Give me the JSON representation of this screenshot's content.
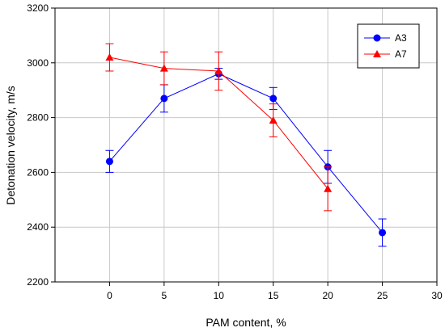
{
  "chart_data": {
    "type": "line",
    "title": "",
    "xlabel": "PAM content, %",
    "ylabel": "Detonation velocity, m/s",
    "xlim": [
      -5,
      30
    ],
    "ylim": [
      2200,
      3200
    ],
    "xticks": [
      0,
      5,
      10,
      15,
      20,
      25,
      30
    ],
    "yticks": [
      2200,
      2400,
      2600,
      2800,
      3000,
      3200
    ],
    "grid": true,
    "legend_position": "top-right",
    "series": [
      {
        "name": "A3",
        "color": "#0000FF",
        "marker": "circle",
        "x": [
          0,
          5,
          10,
          15,
          20,
          25
        ],
        "y": [
          2640,
          2870,
          2960,
          2870,
          2620,
          2380
        ],
        "error": [
          40,
          50,
          20,
          40,
          60,
          50
        ]
      },
      {
        "name": "A7",
        "color": "#FF0000",
        "marker": "triangle",
        "x": [
          0,
          5,
          10,
          15,
          20
        ],
        "y": [
          3020,
          2980,
          2970,
          2790,
          2540
        ],
        "error": [
          50,
          60,
          70,
          60,
          80
        ]
      }
    ]
  }
}
